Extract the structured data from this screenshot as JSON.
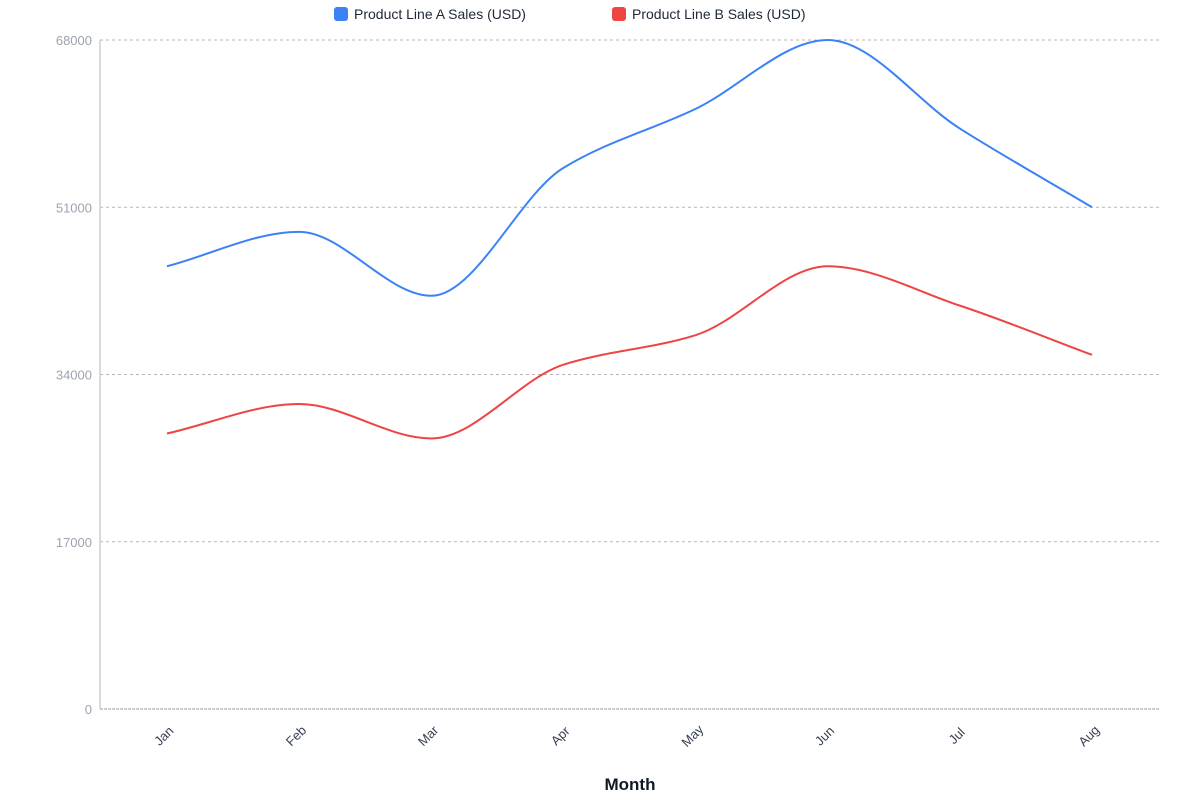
{
  "legend": {
    "items": [
      {
        "label": "Product Line A Sales (USD)",
        "color": "#3b82f6"
      },
      {
        "label": "Product Line B Sales (USD)",
        "color": "#ef4444"
      }
    ]
  },
  "axes": {
    "xlabel": "Month",
    "yticks": [
      "0",
      "17000",
      "34000",
      "51000",
      "68000"
    ],
    "xticks": [
      "Jan",
      "Feb",
      "Mar",
      "Apr",
      "May",
      "Jun",
      "Jul",
      "Aug"
    ]
  },
  "chart_data": {
    "type": "line",
    "title": "",
    "xlabel": "Month",
    "ylabel": "",
    "categories": [
      "Jan",
      "Feb",
      "Mar",
      "Apr",
      "May",
      "Jun",
      "Jul",
      "Aug"
    ],
    "series": [
      {
        "name": "Product Line A Sales (USD)",
        "color": "#3b82f6",
        "values": [
          45000,
          48500,
          42000,
          55000,
          61000,
          68000,
          59000,
          51000
        ]
      },
      {
        "name": "Product Line B Sales (USD)",
        "color": "#ef4444",
        "values": [
          28000,
          31000,
          27500,
          35000,
          38000,
          45000,
          41000,
          36000
        ]
      }
    ],
    "ylim": [
      0,
      68000
    ],
    "yticks": [
      0,
      17000,
      34000,
      51000,
      68000
    ],
    "grid": "horizontal dashed",
    "legend_position": "top",
    "curve": "smooth"
  }
}
